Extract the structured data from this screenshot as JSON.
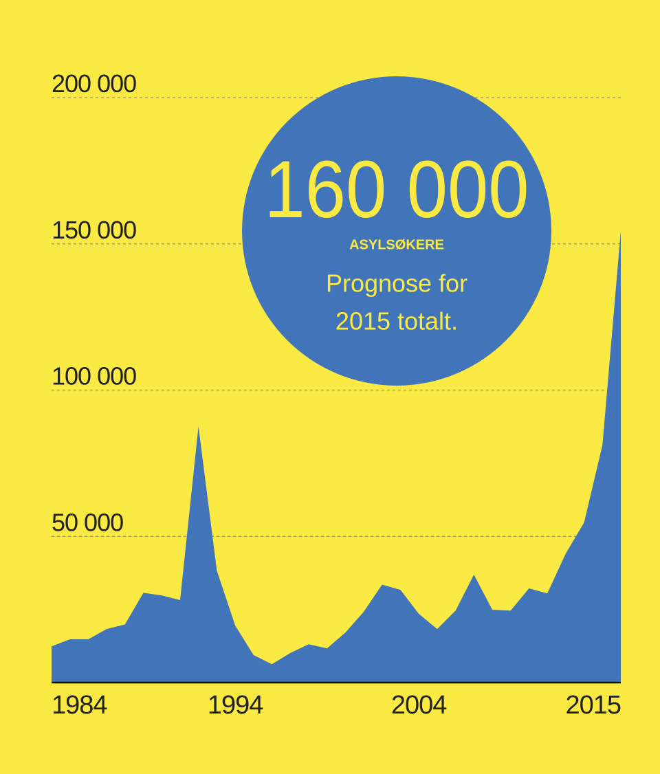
{
  "chart_data": {
    "type": "area",
    "x": [
      1984,
      1985,
      1986,
      1987,
      1988,
      1989,
      1990,
      1991,
      1992,
      1993,
      1994,
      1995,
      1996,
      1997,
      1998,
      1999,
      2000,
      2001,
      2002,
      2003,
      2004,
      2005,
      2006,
      2007,
      2008,
      2009,
      2010,
      2011,
      2012,
      2013,
      2014,
      2015
    ],
    "values": [
      12400,
      14800,
      14800,
      18300,
      19900,
      30700,
      29800,
      28200,
      87600,
      38300,
      19500,
      9400,
      6300,
      10100,
      13100,
      11700,
      17100,
      24200,
      33500,
      31700,
      23500,
      18300,
      24600,
      36900,
      24900,
      24600,
      32200,
      30500,
      44100,
      54700,
      81200,
      154500
    ],
    "color": "#4174b8",
    "xlim": [
      1984,
      2015
    ],
    "xticks": [
      1984,
      1994,
      2004,
      2015
    ],
    "ylim": [
      0,
      200000
    ],
    "yticks": [
      {
        "value": 50000,
        "label": "50 000"
      },
      {
        "value": 100000,
        "label": "100 000"
      },
      {
        "value": 150000,
        "label": "150 000"
      },
      {
        "value": 200000,
        "label": "200 000"
      }
    ],
    "grid": true,
    "annotation": {
      "value_text": "160 000",
      "unit": "ASYLSØKERE",
      "lines": [
        "Prognose for",
        "2015 totalt."
      ]
    }
  }
}
